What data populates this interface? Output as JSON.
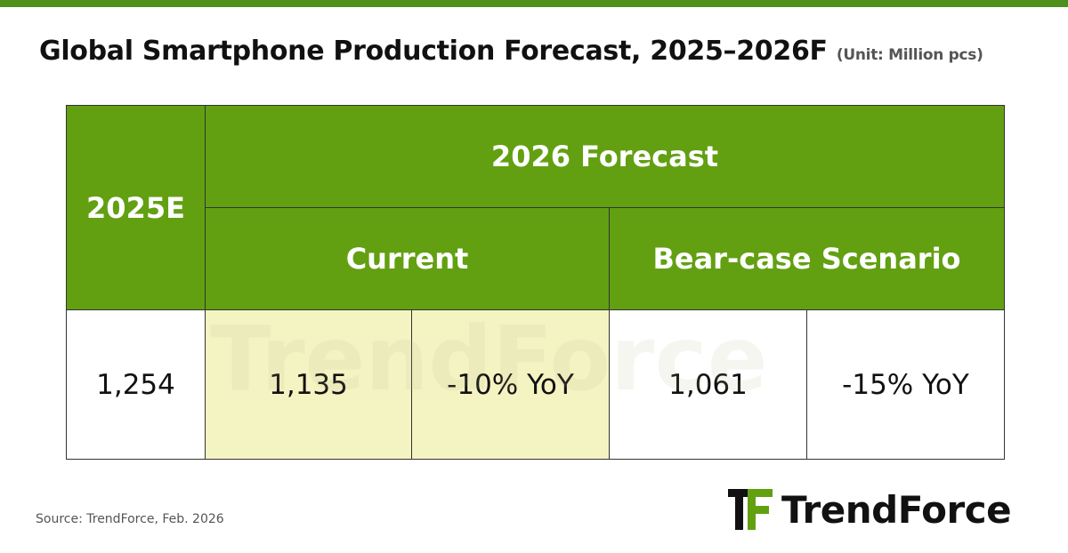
{
  "header": {
    "title": "Global Smartphone Production Forecast, 2025–2026F",
    "unit": "(Unit: Million pcs)"
  },
  "table": {
    "year_header": "2025E",
    "forecast_header": "2026 Forecast",
    "sub_headers": [
      "Current",
      "Bear-case Scenario"
    ],
    "row": [
      "1,254",
      "1,135",
      "-10% YoY",
      "1,061",
      "-15% YoY"
    ]
  },
  "footer": {
    "source": "Source: TrendForce, Feb. 2026",
    "logo": "TrendForce"
  }
}
